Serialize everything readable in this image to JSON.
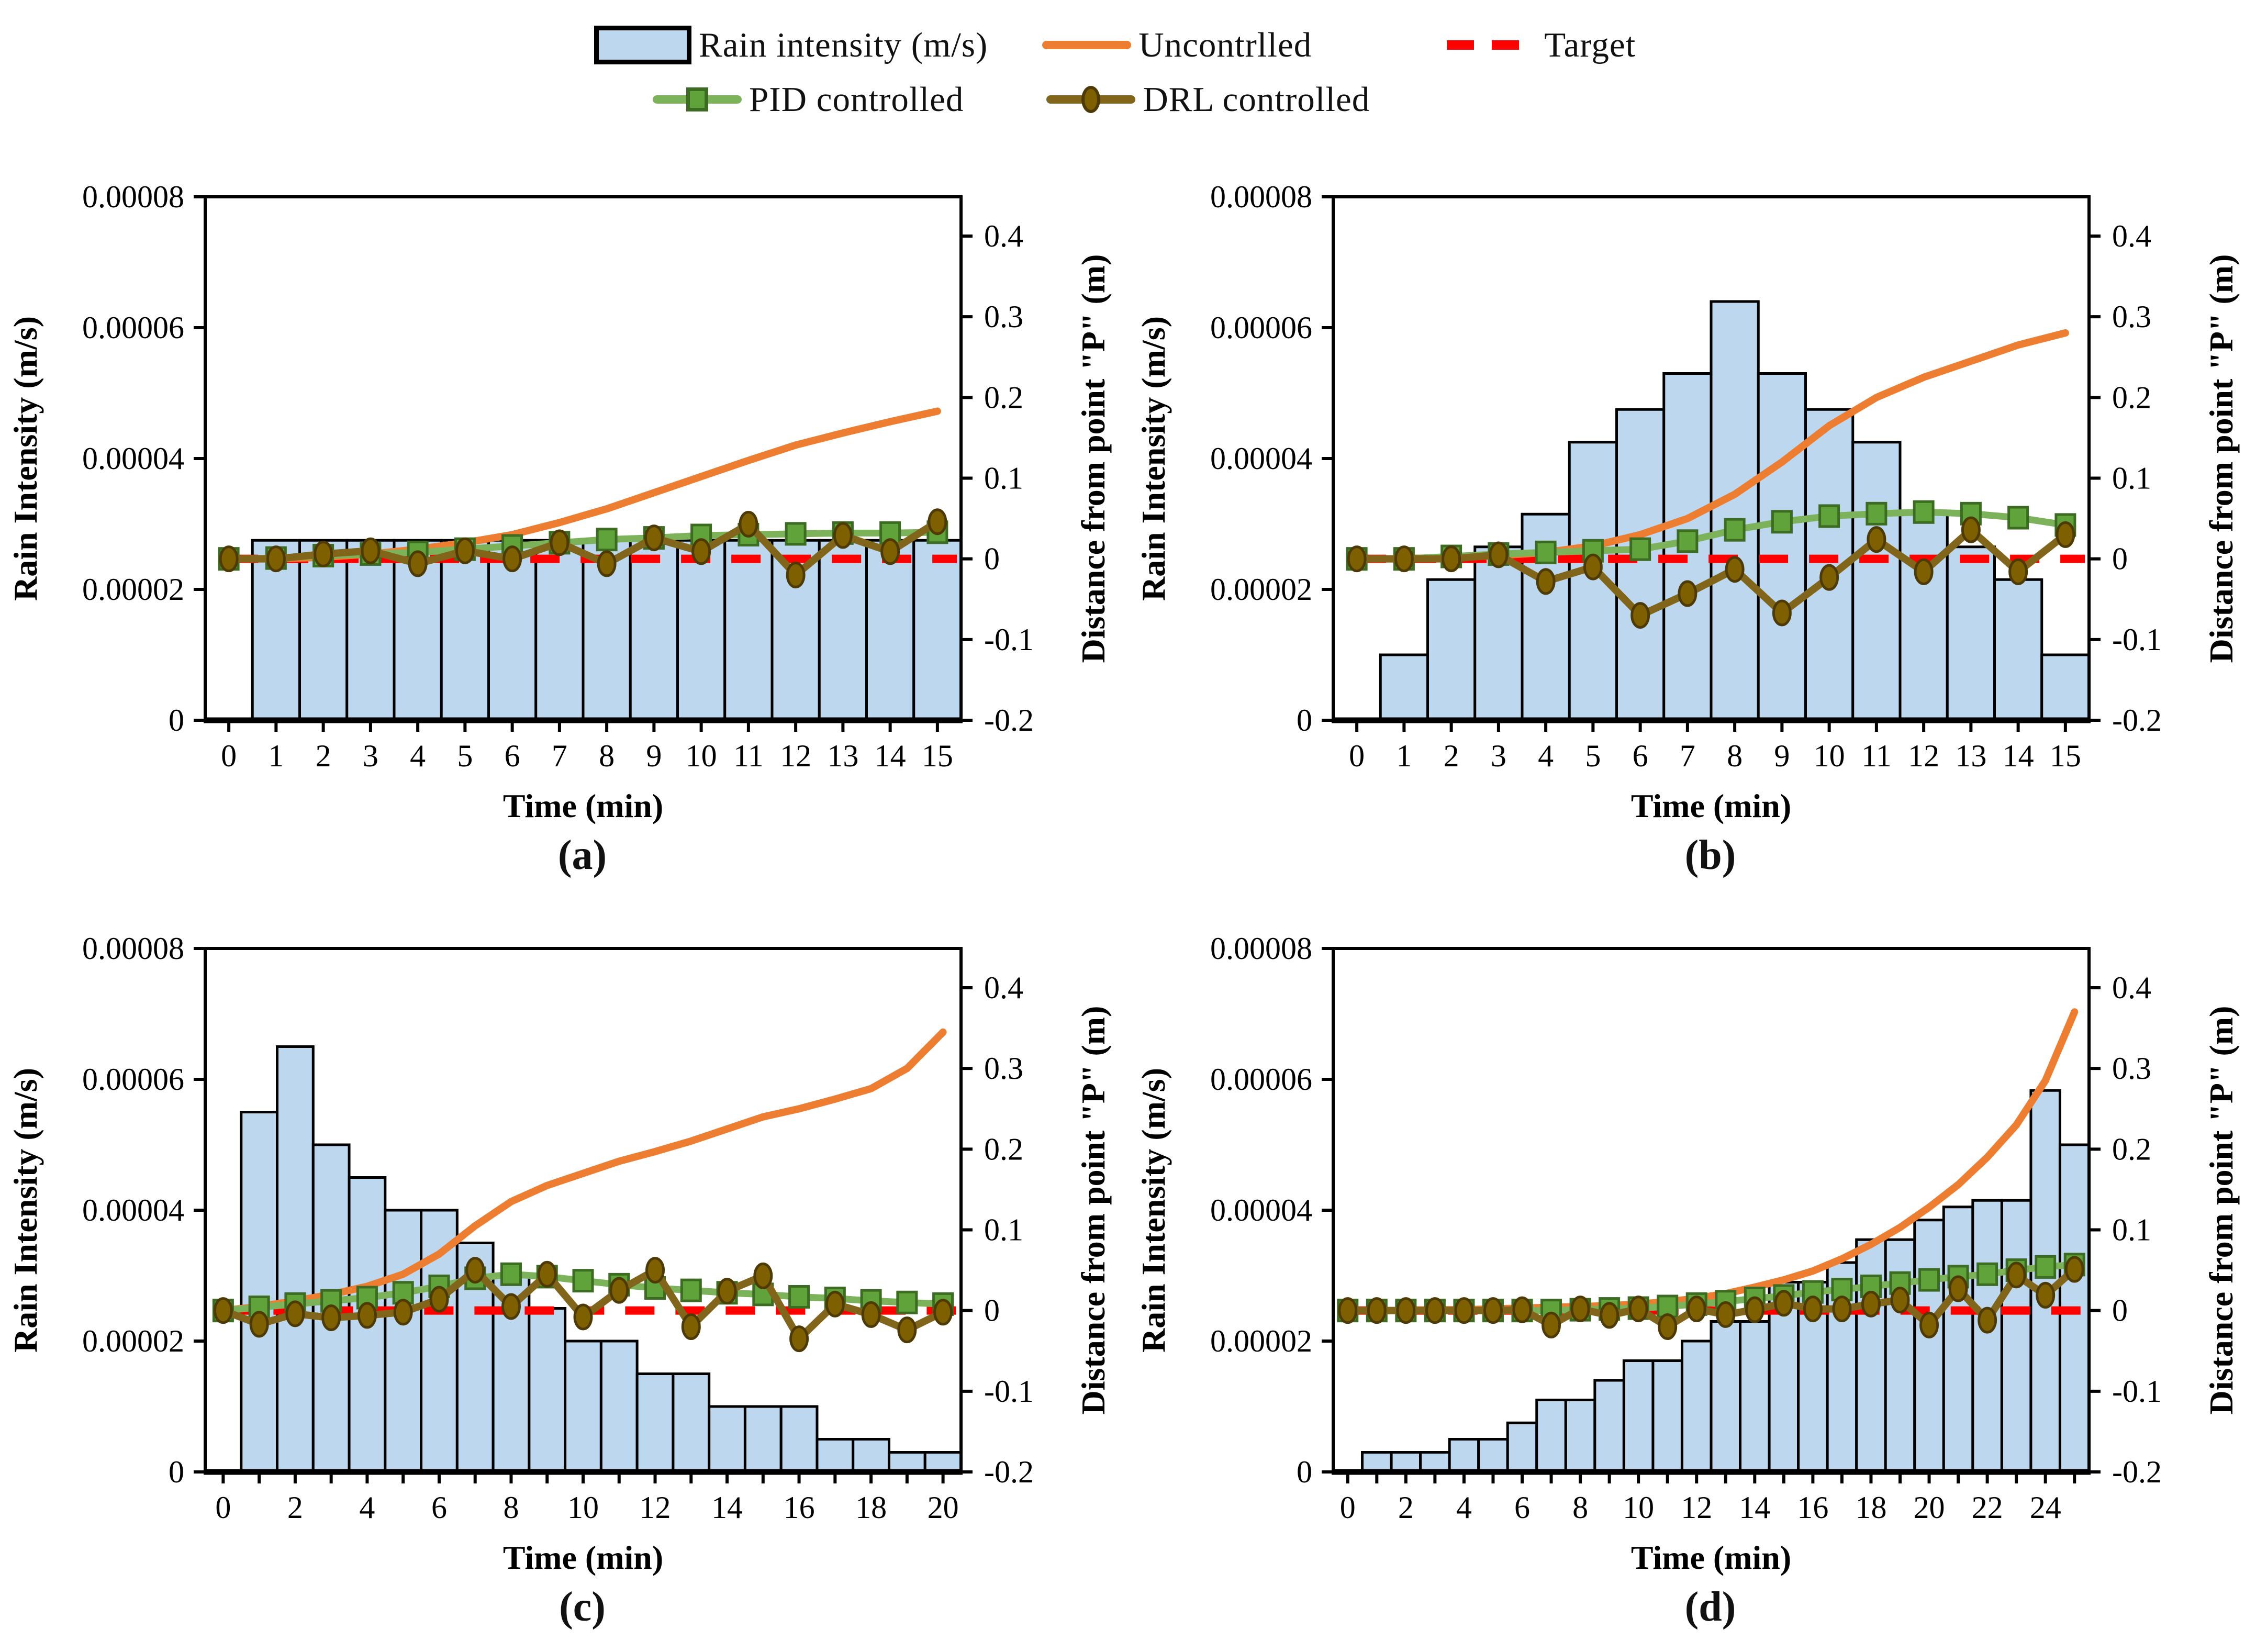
{
  "legend": {
    "items": [
      {
        "id": "rain",
        "label": "Rain intensity (m/s)",
        "swatch": "bar"
      },
      {
        "id": "uncontrolled",
        "label": "Uncontrlled",
        "swatch": "line"
      },
      {
        "id": "target",
        "label": "Target",
        "swatch": "dashed"
      },
      {
        "id": "pid",
        "label": "PID controlled",
        "swatch": "line-square"
      },
      {
        "id": "drl",
        "label": "DRL controlled",
        "swatch": "line-circle"
      }
    ]
  },
  "colors": {
    "bar_fill": "#BDD7EE",
    "bar_border": "#000000",
    "uncontrolled": "#ED7D31",
    "pid_line": "#7CB25A",
    "pid_marker_fill": "#5FA33A",
    "pid_marker_border": "#3C6B22",
    "drl_line": "#80651A",
    "drl_marker_fill": "#7F6000",
    "drl_marker_border": "#4D3A05",
    "target": "#FF0000",
    "axis": "#000000"
  },
  "axes": {
    "left_label": "Rain Intensity (m/s)",
    "right_label": "Distance from point \"P\" (m)",
    "x_label": "Time (min)",
    "left_min": 0,
    "left_max": 8e-05,
    "left_tick_step": 2e-05,
    "right_min": -0.2,
    "right_max": 0.4,
    "right_tick_step": 0.1,
    "right_scale": 0.925,
    "left_tick_labels": [
      "0",
      "0.00002",
      "0.00004",
      "0.00006",
      "0.00008"
    ],
    "right_tick_labels": [
      "-0.2",
      "-0.1",
      "0",
      "0.1",
      "0.2",
      "0.3",
      "0.4"
    ]
  },
  "chart_data": [
    {
      "type": "bar+line",
      "caption": "(a)",
      "x_max": 15,
      "x_label_every": 1,
      "bars": [
        2.75e-05,
        2.75e-05,
        2.75e-05,
        2.75e-05,
        2.75e-05,
        2.75e-05,
        2.75e-05,
        2.75e-05,
        2.75e-05,
        2.75e-05,
        2.75e-05,
        2.75e-05,
        2.75e-05,
        2.75e-05,
        2.75e-05
      ],
      "uncontrolled": [
        0,
        0,
        0.002,
        0.006,
        0.012,
        0.02,
        0.03,
        0.045,
        0.062,
        0.082,
        0.102,
        0.122,
        0.141,
        0.156,
        0.17,
        0.183
      ],
      "pid": [
        0,
        0.001,
        0.004,
        0.006,
        0.008,
        0.012,
        0.016,
        0.02,
        0.024,
        0.026,
        0.029,
        0.03,
        0.031,
        0.032,
        0.032,
        0.033
      ],
      "drl": [
        0,
        0,
        0.006,
        0.01,
        -0.006,
        0.01,
        0,
        0.02,
        -0.006,
        0.026,
        0.009,
        0.043,
        -0.02,
        0.029,
        0.009,
        0.046
      ],
      "target_value": 0
    },
    {
      "type": "bar+line",
      "caption": "(b)",
      "x_max": 15,
      "x_label_every": 1,
      "bars": [
        1e-05,
        2.15e-05,
        2.65e-05,
        3.15e-05,
        4.25e-05,
        4.75e-05,
        5.3e-05,
        6.4e-05,
        5.3e-05,
        4.75e-05,
        4.25e-05,
        3.15e-05,
        2.65e-05,
        2.15e-05,
        1e-05
      ],
      "uncontrolled": [
        0,
        0,
        0.002,
        0.004,
        0.008,
        0.016,
        0.03,
        0.05,
        0.08,
        0.12,
        0.165,
        0.2,
        0.225,
        0.245,
        0.265,
        0.28
      ],
      "pid": [
        0,
        0,
        0.003,
        0.006,
        0.008,
        0.01,
        0.012,
        0.022,
        0.036,
        0.046,
        0.053,
        0.056,
        0.058,
        0.056,
        0.051,
        0.042
      ],
      "drl": [
        0,
        0,
        0,
        0.005,
        -0.028,
        -0.01,
        -0.07,
        -0.043,
        -0.013,
        -0.067,
        -0.023,
        0.024,
        -0.016,
        0.036,
        -0.016,
        0.03
      ],
      "target_value": 0
    },
    {
      "type": "bar+line",
      "caption": "(c)",
      "x_max": 20,
      "x_label_every": 2,
      "bars": [
        5.5e-05,
        6.5e-05,
        5e-05,
        4.5e-05,
        4e-05,
        4e-05,
        3.5e-05,
        3e-05,
        2.5e-05,
        2e-05,
        2e-05,
        1.5e-05,
        1.5e-05,
        1e-05,
        1e-05,
        1e-05,
        5e-06,
        5e-06,
        3e-06,
        3e-06
      ],
      "uncontrolled": [
        0,
        0.005,
        0.012,
        0.02,
        0.03,
        0.045,
        0.07,
        0.105,
        0.135,
        0.155,
        0.17,
        0.185,
        0.197,
        0.21,
        0.225,
        0.24,
        0.25,
        0.262,
        0.275,
        0.3,
        0.345
      ],
      "pid": [
        0,
        0.004,
        0.008,
        0.012,
        0.016,
        0.022,
        0.03,
        0.04,
        0.045,
        0.042,
        0.037,
        0.032,
        0.028,
        0.025,
        0.022,
        0.02,
        0.017,
        0.015,
        0.012,
        0.01,
        0.008
      ],
      "drl": [
        0,
        -0.017,
        -0.004,
        -0.009,
        -0.006,
        -0.002,
        0.014,
        0.05,
        0.005,
        0.045,
        -0.008,
        0.025,
        0.05,
        -0.02,
        0.024,
        0.043,
        -0.035,
        0.008,
        -0.005,
        -0.024,
        -0.002
      ],
      "target_value": 0
    },
    {
      "type": "bar+line",
      "caption": "(d)",
      "x_max": 25,
      "x_label_every": 2,
      "bars": [
        3e-06,
        3e-06,
        3e-06,
        5e-06,
        5e-06,
        7.5e-06,
        1.1e-05,
        1.1e-05,
        1.4e-05,
        1.7e-05,
        1.7e-05,
        2e-05,
        2.3e-05,
        2.3e-05,
        2.9e-05,
        2.9e-05,
        3.2e-05,
        3.55e-05,
        3.55e-05,
        3.85e-05,
        4.05e-05,
        4.15e-05,
        4.15e-05,
        5.83e-05,
        5e-05
      ],
      "uncontrolled": [
        0,
        0,
        0,
        0.001,
        0.001,
        0.002,
        0.003,
        0.004,
        0.005,
        0.006,
        0.008,
        0.011,
        0.015,
        0.021,
        0.029,
        0.038,
        0.049,
        0.064,
        0.082,
        0.103,
        0.128,
        0.156,
        0.19,
        0.23,
        0.285,
        0.37
      ],
      "pid": [
        0,
        0,
        0,
        0,
        0,
        0,
        0,
        0,
        0.001,
        0.002,
        0.003,
        0.005,
        0.008,
        0.011,
        0.015,
        0.018,
        0.023,
        0.026,
        0.03,
        0.034,
        0.038,
        0.042,
        0.045,
        0.05,
        0.054,
        0.057
      ],
      "drl": [
        0,
        0,
        0,
        0,
        0,
        0,
        0.001,
        -0.018,
        0.002,
        -0.006,
        0.002,
        -0.02,
        0.002,
        -0.005,
        0.001,
        0.009,
        0.002,
        0.002,
        0.008,
        0.013,
        -0.018,
        0.027,
        -0.012,
        0.044,
        0.019,
        0.051
      ],
      "target_value": 0
    }
  ]
}
